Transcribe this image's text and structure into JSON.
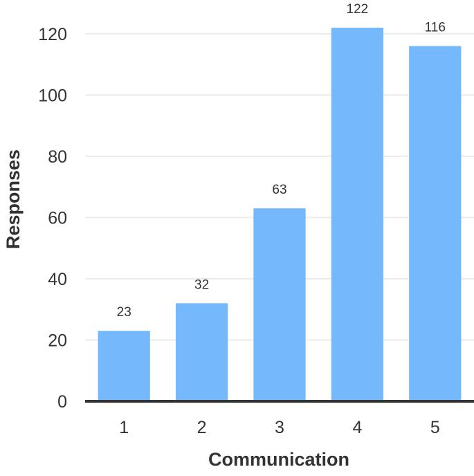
{
  "chart_data": {
    "type": "bar",
    "title": "",
    "xlabel": "Communication",
    "ylabel": "Responses",
    "categories": [
      "1",
      "2",
      "3",
      "4",
      "5"
    ],
    "values": [
      23,
      32,
      63,
      122,
      116
    ],
    "data_labels": [
      "23",
      "32",
      "63",
      "122",
      "116"
    ],
    "ylim": [
      0,
      122
    ],
    "yticks": [
      0,
      20,
      40,
      60,
      80,
      100,
      120
    ],
    "ytick_labels": [
      "0",
      "20",
      "40",
      "60",
      "80",
      "100",
      "120"
    ],
    "grid": true,
    "legend": "none",
    "colors": {
      "bar": "#75b9fc",
      "grid": "#ebebeb",
      "baseline": "#333333",
      "text": "#333333"
    }
  }
}
